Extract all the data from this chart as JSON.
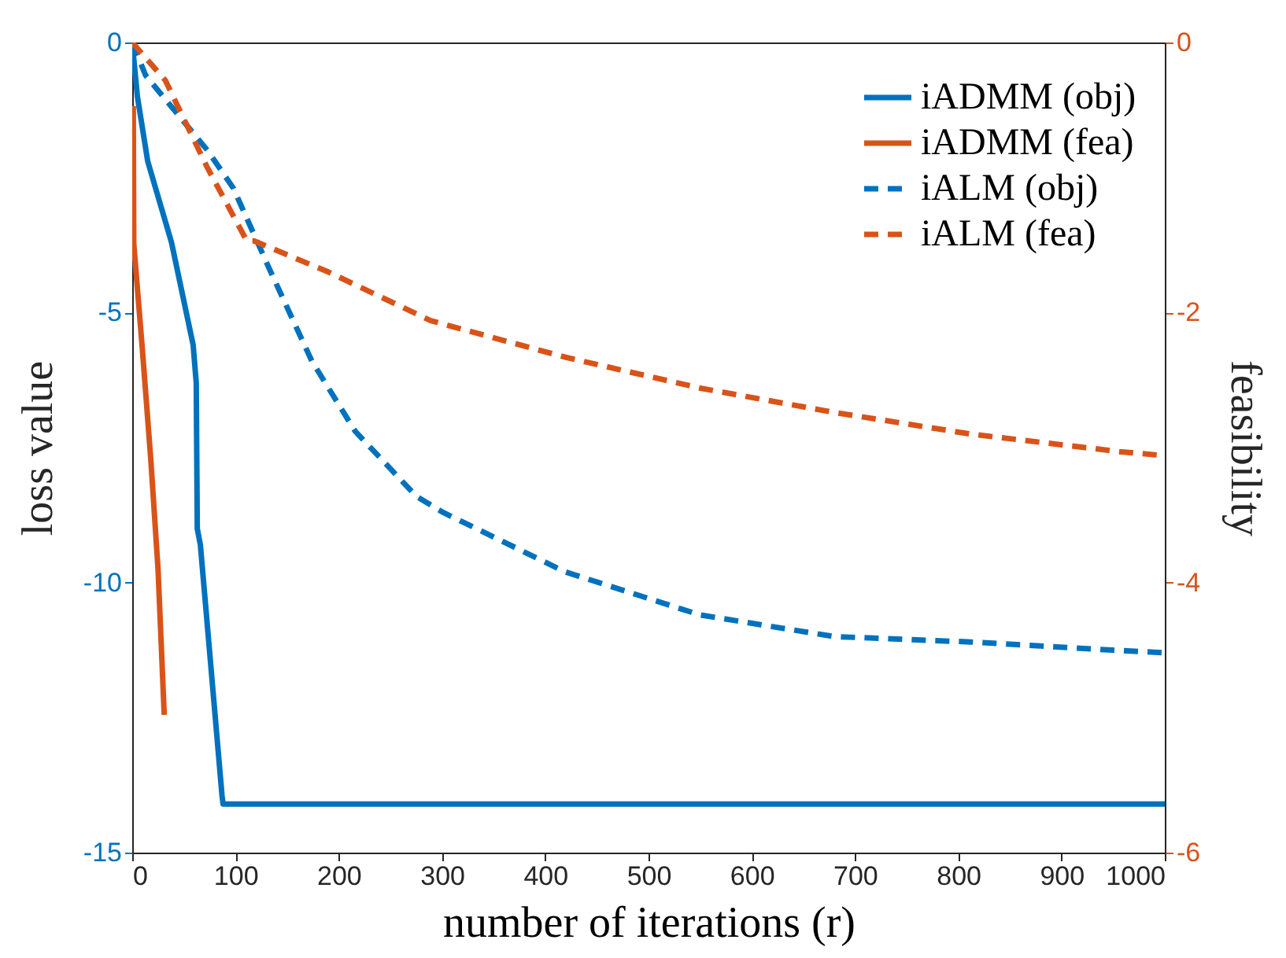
{
  "chart_data": {
    "type": "line",
    "xlabel": "number of iterations (r)",
    "ylabel": "loss value",
    "y2label": "feasibility",
    "xlim": [
      0,
      1000
    ],
    "xticks": [
      0,
      100,
      200,
      300,
      400,
      500,
      600,
      700,
      800,
      900,
      1000
    ],
    "ylim": [
      -15,
      0
    ],
    "yticks": [
      -15,
      -10,
      -5,
      0
    ],
    "y2lim": [
      -6,
      0
    ],
    "y2ticks": [
      -6,
      -4,
      -2,
      0
    ],
    "grid": false,
    "legend": "top right",
    "marker": "none",
    "series": [
      {
        "name": "iADMM (obj)",
        "color": "#0072bd",
        "line_style": "solid",
        "x": [
          0,
          5,
          15,
          38,
          59,
          62,
          63,
          66,
          87,
          88,
          200,
          400,
          600,
          800,
          1000
        ],
        "values": [
          0,
          -1,
          -2.2,
          -3.7,
          -5.6,
          -6.3,
          -9.0,
          -9.3,
          -13.95,
          -14.1,
          -14.1,
          -14.1,
          -14.1,
          -14.1,
          -14.1
        ]
      },
      {
        "name": "iADMM (fea)",
        "color": "#d95319",
        "line_style": "solid",
        "axis": "y2",
        "x": [
          1,
          1.5,
          10,
          18,
          25,
          31
        ],
        "values": [
          -0.47,
          -1.49,
          -2.29,
          -3.09,
          -3.9,
          -4.98
        ]
      },
      {
        "name": "iALM (obj)",
        "color": "#0072bd",
        "line_style": "dashed",
        "x": [
          0,
          13,
          73,
          98,
          133,
          174,
          216,
          275,
          301,
          419,
          550,
          680,
          812,
          949,
          1000
        ],
        "values": [
          0,
          -0.61,
          -2.0,
          -2.7,
          -4.2,
          -5.9,
          -7.2,
          -8.4,
          -8.7,
          -9.8,
          -10.6,
          -11.0,
          -11.1,
          -11.25,
          -11.3
        ]
      },
      {
        "name": "iALM (fea)",
        "color": "#d95319",
        "line_style": "dashed",
        "axis": "y2",
        "x": [
          0,
          32,
          73,
          111,
          118,
          190,
          289,
          419,
          550,
          680,
          812,
          956,
          1000
        ],
        "values": [
          0,
          -0.28,
          -0.93,
          -1.47,
          -1.47,
          -1.7,
          -2.06,
          -2.33,
          -2.56,
          -2.74,
          -2.9,
          -3.03,
          -3.06
        ]
      }
    ]
  }
}
